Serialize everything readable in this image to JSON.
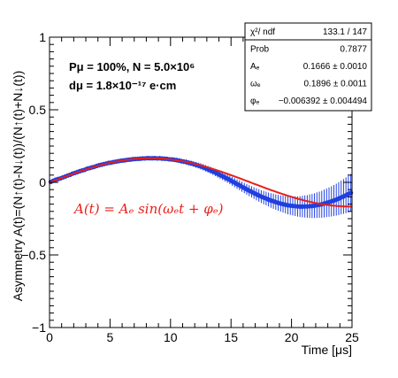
{
  "chart_data": {
    "type": "scatter",
    "xlabel": "Time [μs]",
    "ylabel": "Asymmetry A(t)=(N↑(t)-N↓(t))/(N↑(t)+N↓(t))",
    "xlim": [
      0,
      25
    ],
    "ylim": [
      -1,
      1
    ],
    "x_ticks": [
      "0",
      "5",
      "10",
      "15",
      "20",
      "25"
    ],
    "y_ticks": [
      "−1",
      "−0.5",
      "0",
      "0.5",
      "1"
    ],
    "grid": false,
    "annotations": {
      "params_line1": "Pμ = 100%,  N = 5.0×10⁶",
      "params_line2": "dμ = 1.8×10⁻¹⁷ e·cm",
      "fit_equation": "A(t) = Aₑ sin(ωₑt + φₑ)"
    },
    "stats_box": [
      {
        "label": "χ²/ ndf",
        "value": "133.1 / 147"
      },
      {
        "label": "Prob",
        "value": "0.7877"
      },
      {
        "label": "Aₑ",
        "value": "0.1666 ± 0.0010"
      },
      {
        "label": "ωₑ",
        "value": "0.1896 ± 0.0011"
      },
      {
        "label": "φₑ",
        "value": "−0.006392 ± 0.004494"
      }
    ],
    "fit": {
      "name": "",
      "A": 0.1666,
      "omega": 0.1896,
      "phi": -0.006392,
      "x_range": [
        0,
        25
      ],
      "color": "#e8201a"
    },
    "series": [
      {
        "name": "",
        "color": "#1f3fe0",
        "x": [
          0.1,
          0.3,
          0.5,
          0.7,
          0.9,
          1.1,
          1.3,
          1.5,
          1.7,
          1.9,
          2.1,
          2.3,
          2.5,
          2.7,
          2.9,
          3.1,
          3.3,
          3.5,
          3.7,
          3.9,
          4.1,
          4.3,
          4.5,
          4.7,
          4.9,
          5.1,
          5.3,
          5.5,
          5.7,
          5.9,
          6.1,
          6.3,
          6.5,
          6.7,
          6.9,
          7.1,
          7.3,
          7.5,
          7.7,
          7.9,
          8.1,
          8.3,
          8.5,
          8.7,
          8.9,
          9.1,
          9.3,
          9.5,
          9.7,
          9.9,
          10.1,
          10.3,
          10.5,
          10.7,
          10.9,
          11.1,
          11.3,
          11.5,
          11.7,
          11.9,
          12.1,
          12.3,
          12.5,
          12.7,
          12.9,
          13.1,
          13.3,
          13.5,
          13.7,
          13.9,
          14.1,
          14.3,
          14.5,
          14.7,
          14.9,
          15.1,
          15.3,
          15.5,
          15.7,
          15.9,
          16.1,
          16.3,
          16.5,
          16.7,
          16.9,
          17.1,
          17.3,
          17.5,
          17.7,
          17.9,
          18.1,
          18.3,
          18.5,
          18.7,
          18.9,
          19.1,
          19.3,
          19.5,
          19.7,
          19.9,
          20.1,
          20.3,
          20.5,
          20.7,
          20.9,
          21.1,
          21.3,
          21.5,
          21.7,
          21.9,
          22.1,
          22.3,
          22.5,
          22.7,
          22.9,
          23.1,
          23.3,
          23.5,
          23.7,
          23.9,
          24.1,
          24.3,
          24.5,
          24.7,
          24.9
        ],
        "y": [
          0.003,
          0.011,
          0.018,
          0.023,
          0.027,
          0.034,
          0.04,
          0.047,
          0.052,
          0.06,
          0.065,
          0.071,
          0.077,
          0.082,
          0.086,
          0.094,
          0.098,
          0.103,
          0.107,
          0.113,
          0.118,
          0.122,
          0.126,
          0.13,
          0.134,
          0.136,
          0.14,
          0.143,
          0.146,
          0.149,
          0.151,
          0.153,
          0.156,
          0.157,
          0.16,
          0.161,
          0.162,
          0.163,
          0.165,
          0.165,
          0.167,
          0.166,
          0.166,
          0.167,
          0.165,
          0.166,
          0.164,
          0.163,
          0.162,
          0.159,
          0.158,
          0.156,
          0.153,
          0.15,
          0.146,
          0.143,
          0.14,
          0.135,
          0.131,
          0.126,
          0.121,
          0.116,
          0.11,
          0.104,
          0.097,
          0.09,
          0.083,
          0.075,
          0.068,
          0.059,
          0.051,
          0.043,
          0.034,
          0.026,
          0.017,
          0.007,
          -0.002,
          -0.012,
          -0.02,
          -0.03,
          -0.039,
          -0.048,
          -0.057,
          -0.065,
          -0.074,
          -0.082,
          -0.09,
          -0.098,
          -0.105,
          -0.111,
          -0.118,
          -0.125,
          -0.13,
          -0.136,
          -0.141,
          -0.146,
          -0.15,
          -0.154,
          -0.158,
          -0.16,
          -0.162,
          -0.164,
          -0.166,
          -0.167,
          -0.167,
          -0.166,
          -0.166,
          -0.164,
          -0.163,
          -0.16,
          -0.157,
          -0.154,
          -0.151,
          -0.146,
          -0.141,
          -0.136,
          -0.131,
          -0.125,
          -0.119,
          -0.112,
          -0.104,
          -0.097,
          -0.089,
          -0.08,
          -0.072
        ],
        "y_err": [
          0.006,
          0.006,
          0.006,
          0.006,
          0.006,
          0.006,
          0.006,
          0.006,
          0.006,
          0.006,
          0.007,
          0.007,
          0.007,
          0.007,
          0.007,
          0.007,
          0.007,
          0.007,
          0.007,
          0.007,
          0.008,
          0.008,
          0.008,
          0.008,
          0.008,
          0.009,
          0.009,
          0.009,
          0.009,
          0.009,
          0.01,
          0.01,
          0.01,
          0.01,
          0.01,
          0.011,
          0.011,
          0.011,
          0.011,
          0.012,
          0.012,
          0.012,
          0.012,
          0.013,
          0.013,
          0.013,
          0.014,
          0.014,
          0.014,
          0.015,
          0.015,
          0.016,
          0.016,
          0.016,
          0.017,
          0.017,
          0.018,
          0.018,
          0.019,
          0.019,
          0.02,
          0.02,
          0.021,
          0.022,
          0.022,
          0.023,
          0.024,
          0.024,
          0.025,
          0.026,
          0.026,
          0.027,
          0.028,
          0.029,
          0.03,
          0.031,
          0.032,
          0.033,
          0.034,
          0.035,
          0.036,
          0.037,
          0.038,
          0.039,
          0.04,
          0.042,
          0.043,
          0.044,
          0.046,
          0.047,
          0.048,
          0.05,
          0.052,
          0.053,
          0.055,
          0.056,
          0.058,
          0.06,
          0.062,
          0.064,
          0.066,
          0.068,
          0.07,
          0.072,
          0.074,
          0.076,
          0.078,
          0.081,
          0.083,
          0.085,
          0.088,
          0.09,
          0.093,
          0.096,
          0.098,
          0.101,
          0.104,
          0.107,
          0.11,
          0.113,
          0.116,
          0.12,
          0.123,
          0.126,
          0.13
        ]
      }
    ]
  }
}
